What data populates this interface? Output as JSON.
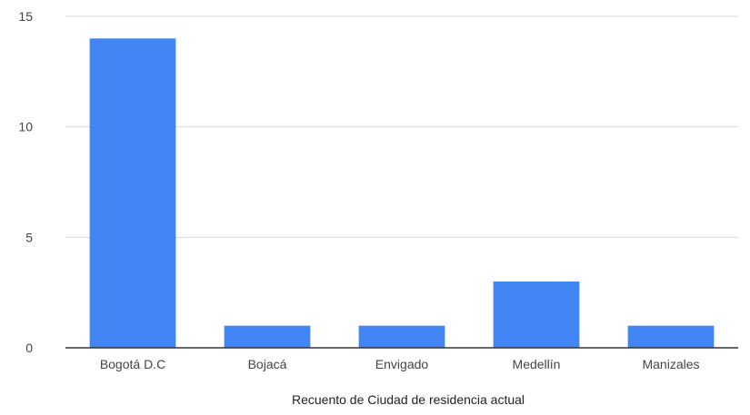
{
  "chart_data": {
    "type": "bar",
    "categories": [
      "Bogotá D.C",
      "Bojacá",
      "Envigado",
      "Medellín",
      "Manizales"
    ],
    "values": [
      14,
      1,
      1,
      3,
      1
    ],
    "title": "",
    "xlabel": "Recuento de Ciudad de residencia actual",
    "ylabel": "",
    "ylim": [
      0,
      15
    ],
    "yticks": [
      "0",
      "5",
      "10",
      "15"
    ],
    "grid": true,
    "legend": "none",
    "bar_color": "#4285f4",
    "grid_color": "#d9d9d9",
    "axis_color": "#333333"
  }
}
